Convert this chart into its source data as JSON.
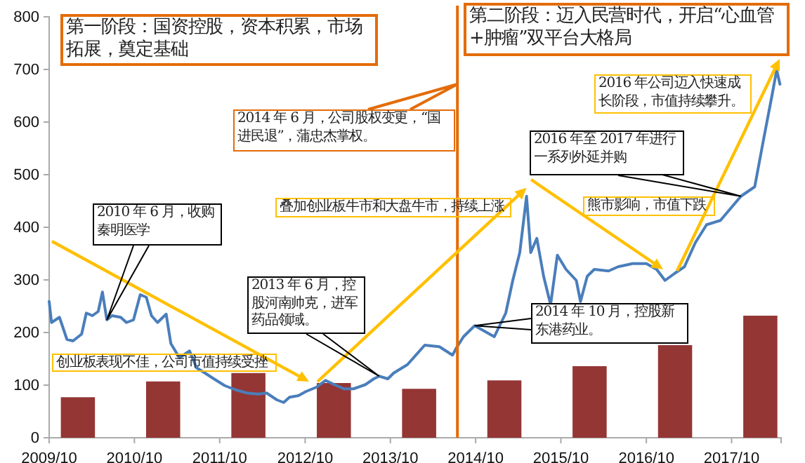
{
  "chart_data": {
    "type": "line",
    "xlim": [
      "2009-10-01",
      "2018-05-01"
    ],
    "ylim": [
      0,
      800
    ],
    "xticks": [
      {
        "value": "2009-10-01",
        "label": "2009/10"
      },
      {
        "value": "2010-10-01",
        "label": "2010/10"
      },
      {
        "value": "2011-10-01",
        "label": "2011/10"
      },
      {
        "value": "2012-10-01",
        "label": "2012/10"
      },
      {
        "value": "2013-10-01",
        "label": "2013/10"
      },
      {
        "value": "2014-10-01",
        "label": "2014/10"
      },
      {
        "value": "2015-10-01",
        "label": "2015/10"
      },
      {
        "value": "2016-10-01",
        "label": "2016/10"
      },
      {
        "value": "2017-10-01",
        "label": "2017/10"
      }
    ],
    "yticks": [
      0,
      100,
      200,
      300,
      400,
      500,
      600,
      700,
      800
    ],
    "grid": false,
    "marker": "none",
    "line_style": "solid",
    "series": [
      {
        "type": "bar",
        "color": "#943634",
        "x": [
          "2010-02-01",
          "2011-02-01",
          "2012-02-01",
          "2013-02-01",
          "2014-02-01",
          "2015-02-01",
          "2016-02-01",
          "2017-02-01",
          "2018-02-01"
        ],
        "values": [
          77,
          107,
          123,
          104,
          93,
          109,
          136,
          176,
          232
        ]
      },
      {
        "color": "#4a7ebb",
        "x": [
          "2009-10-01",
          "2009-10-11",
          "2009-11-14",
          "2009-12-16",
          "2010-01-11",
          "2010-02-17",
          "2010-03-09",
          "2010-04-04",
          "2010-04-29",
          "2010-05-17",
          "2010-06-05",
          "2010-06-27",
          "2010-08-03",
          "2010-08-28",
          "2010-09-27",
          "2010-10-26",
          "2010-11-21",
          "2010-12-13",
          "2011-01-08",
          "2011-02-14",
          "2011-03-06",
          "2011-04-12",
          "2011-05-25",
          "2011-06-24",
          "2011-07-30",
          "2011-09-06",
          "2011-10-23",
          "2011-12-09",
          "2012-01-26",
          "2012-03-13",
          "2012-04-19",
          "2012-06-02",
          "2012-07-01",
          "2012-07-26",
          "2012-09-02",
          "2012-10-05",
          "2012-11-18",
          "2012-12-27",
          "2013-02-03",
          "2013-03-16",
          "2013-04-26",
          "2013-06-16",
          "2013-07-22",
          "2013-08-14",
          "2013-09-20",
          "2013-10-15",
          "2013-12-13",
          "2014-02-25",
          "2014-04-29",
          "2014-06-24",
          "2014-07-11",
          "2014-08-10",
          "2014-09-27",
          "2014-12-20",
          "2015-02-07",
          "2015-03-09",
          "2015-04-08",
          "2015-05-07",
          "2015-05-25",
          "2015-06-20",
          "2015-07-19",
          "2015-08-18",
          "2015-09-16",
          "2015-10-23",
          "2015-12-06",
          "2015-12-24",
          "2016-01-22",
          "2016-02-21",
          "2016-04-22",
          "2016-06-02",
          "2016-08-03",
          "2016-10-01",
          "2016-11-14",
          "2016-12-20",
          "2017-01-29",
          "2017-03-13",
          "2017-04-29",
          "2017-06-16",
          "2017-08-14",
          "2017-11-10",
          "2018-01-08",
          "2018-02-14",
          "2018-03-24",
          "2018-04-12",
          "2018-04-26"
        ],
        "values": [
          259,
          219,
          229,
          187,
          184,
          197,
          237,
          232,
          240,
          277,
          224,
          232,
          229,
          219,
          224,
          272,
          267,
          232,
          219,
          235,
          179,
          152,
          165,
          133,
          123,
          112,
          99,
          91,
          85,
          83,
          85,
          72,
          67,
          77,
          80,
          88,
          96,
          109,
          101,
          93,
          93,
          101,
          112,
          117,
          112,
          123,
          139,
          176,
          173,
          157,
          171,
          192,
          213,
          192,
          237,
          299,
          352,
          459,
          352,
          379,
          307,
          253,
          347,
          320,
          299,
          259,
          307,
          320,
          317,
          325,
          331,
          331,
          320,
          299,
          312,
          325,
          371,
          405,
          413,
          459,
          477,
          565,
          653,
          699,
          672
        ]
      }
    ],
    "ref_lines": [
      {
        "axis": "x",
        "value": "2014-07-15",
        "color": "#e36c09"
      }
    ],
    "annotations": [
      "第一阶段：国资控股，资本积累，市场拓展，奠定基础",
      "第二阶段：迈入民营时代，开启“心血管+肿瘤”双平台大格局",
      {
        "text": "2014 年 6 月，公司股权变更，“国进民退”，蒲忠杰掌权。",
        "x": "2014-07-15",
        "y": 672
      },
      {
        "text": "叠加创业板牛市和大盘牛市，持续上涨",
        "x": "2015-05-07",
        "y": 459
      },
      {
        "text": "2010 年 6 月，收购秦明医学",
        "x": "2010-06-05",
        "y": 224
      },
      "创业板表现不佳，公司市值持续受挫",
      {
        "text": "2013 年 6 月，控股河南帅克，进军药品领域。",
        "x": "2013-08-14",
        "y": 117
      },
      {
        "text": "2016 年至 2017 年进行一系列外延并购",
        "x": "2017-11-10",
        "y": 459
      },
      "熊市影响，市值下跌",
      "2016 年公司迈入快速成长阶段，市值持续攀升。",
      {
        "text": "2014 年 10 月，控股新东港药业。",
        "x": "2014-09-27",
        "y": 213
      }
    ]
  }
}
